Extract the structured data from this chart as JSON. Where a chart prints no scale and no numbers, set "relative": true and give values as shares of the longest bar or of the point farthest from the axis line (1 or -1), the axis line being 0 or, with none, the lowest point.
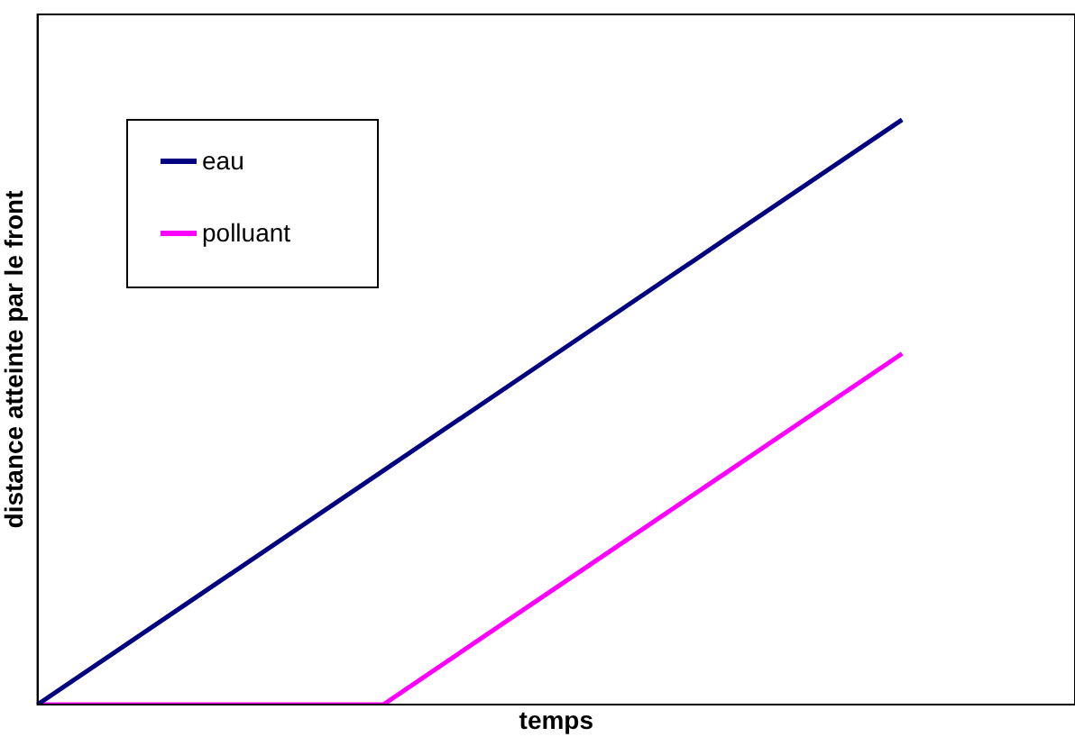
{
  "chart_data": {
    "type": "line",
    "relative": true,
    "xlabel": "temps",
    "ylabel": "distance atteinte par le front",
    "categories": [
      null,
      null,
      null,
      null,
      null,
      null,
      null
    ],
    "series": [
      {
        "name": "eau",
        "color": "#000080",
        "values": [
          0,
          0.2,
          0.4,
          0.6,
          0.8,
          1,
          null
        ]
      },
      {
        "name": "polluant",
        "color": "#ff00ff",
        "values": [
          0,
          0,
          0,
          0.2,
          0.4,
          0.6,
          null
        ]
      }
    ],
    "legend": "top left",
    "grid": false,
    "marker": "none",
    "line_style": "solid"
  }
}
